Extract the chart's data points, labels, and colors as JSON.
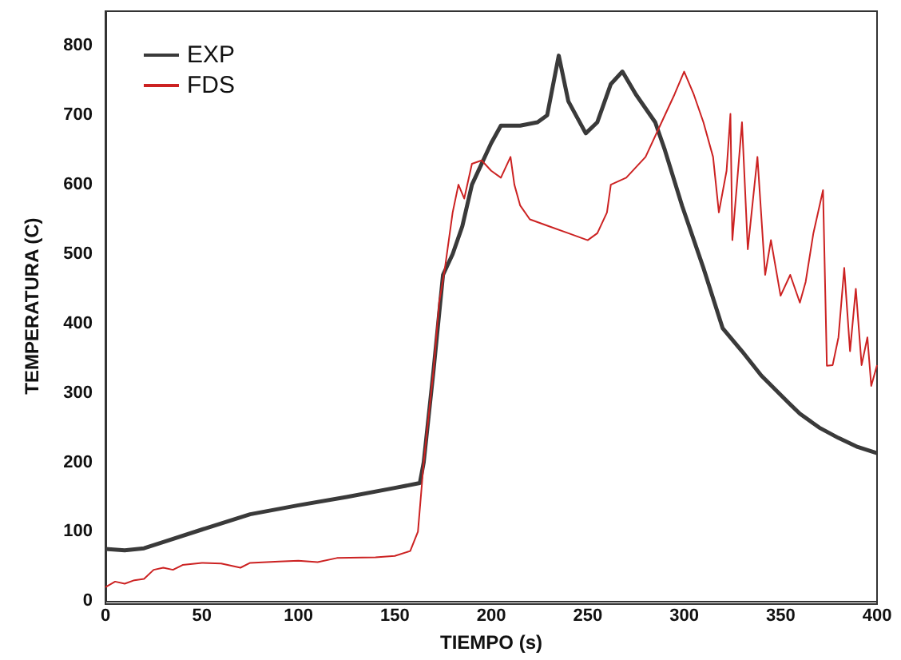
{
  "chart_data": {
    "type": "line",
    "xlabel": "TIEMPO (s)",
    "ylabel": "TEMPERATURA (C)",
    "xlim": [
      0,
      400
    ],
    "xticks": [
      0,
      50,
      100,
      150,
      200,
      250,
      300,
      350,
      400
    ],
    "ylim": [
      0,
      850
    ],
    "yticks": [
      0,
      100,
      200,
      300,
      400,
      500,
      600,
      700,
      800
    ],
    "grid": false,
    "legend": "top left",
    "marker": "none",
    "line_style": "solid",
    "series": [
      {
        "name": "EXP",
        "color": "#3a3a3a",
        "x": [
          0,
          10,
          20,
          30,
          50,
          75,
          100,
          125,
          150,
          163,
          165,
          170,
          175,
          180,
          185,
          190,
          200,
          205,
          215,
          224,
          229,
          235,
          240,
          249,
          255,
          262,
          268,
          275,
          285,
          290,
          299,
          310,
          320,
          330,
          340,
          354,
          360,
          370,
          380,
          390,
          400
        ],
        "values": [
          75,
          73,
          76,
          85,
          103,
          125,
          138,
          150,
          163,
          170,
          200,
          330,
          470,
          500,
          540,
          600,
          660,
          685,
          685,
          690,
          700,
          786,
          720,
          674,
          690,
          745,
          763,
          730,
          690,
          650,
          569,
          480,
          393,
          360,
          325,
          286,
          270,
          250,
          235,
          222,
          213
        ]
      },
      {
        "name": "FDS",
        "color": "#cc2222",
        "x": [
          0,
          5,
          10,
          15,
          20,
          25,
          30,
          35,
          40,
          50,
          60,
          70,
          75,
          90,
          100,
          110,
          120,
          140,
          150,
          158,
          162,
          165,
          170,
          173,
          176,
          180,
          183,
          186,
          190,
          195,
          200,
          205,
          210,
          212,
          215,
          220,
          230,
          240,
          250,
          255,
          260,
          262,
          270,
          280,
          290,
          295,
          300,
          305,
          310,
          315,
          318,
          322,
          324,
          325,
          330,
          333,
          338,
          342,
          345,
          350,
          355,
          360,
          363,
          367,
          372,
          374,
          377,
          380,
          383,
          386,
          389,
          392,
          395,
          397,
          400
        ],
        "values": [
          20,
          28,
          25,
          30,
          32,
          45,
          48,
          45,
          52,
          55,
          54,
          48,
          55,
          57,
          58,
          56,
          62,
          63,
          65,
          72,
          100,
          200,
          330,
          430,
          480,
          560,
          600,
          580,
          630,
          635,
          620,
          610,
          640,
          600,
          570,
          550,
          540,
          530,
          520,
          530,
          560,
          600,
          610,
          640,
          700,
          730,
          763,
          730,
          690,
          640,
          560,
          620,
          702,
          520,
          690,
          507,
          640,
          470,
          520,
          440,
          470,
          430,
          460,
          530,
          592,
          339,
          340,
          380,
          480,
          360,
          450,
          340,
          380,
          310,
          340
        ]
      }
    ]
  }
}
